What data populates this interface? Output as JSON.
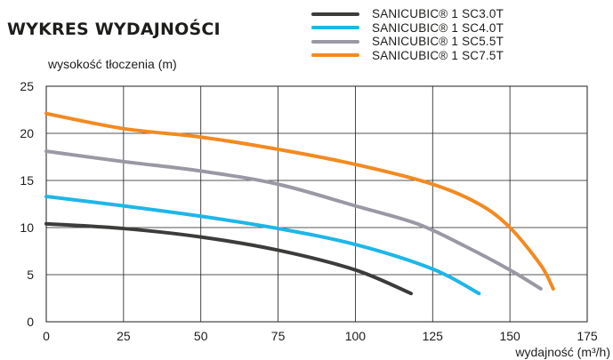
{
  "chart_data": {
    "type": "line",
    "title": "WYKRES WYDAJNOŚCI",
    "ylabel": "wysokość tłoczenia (m)",
    "xlabel": "wydajność (m³/h)",
    "xlim": [
      0,
      175
    ],
    "ylim": [
      0,
      25
    ],
    "xticks": [
      "0",
      "25",
      "50",
      "75",
      "100",
      "125",
      "150",
      "175"
    ],
    "yticks": [
      "0",
      "5",
      "10",
      "15",
      "20",
      "25"
    ],
    "xtick_values": [
      0,
      25,
      50,
      75,
      100,
      125,
      150,
      175
    ],
    "ytick_values": [
      0,
      5,
      10,
      15,
      20,
      25
    ],
    "grid": true,
    "legend_position": "top-right",
    "series": [
      {
        "name": "SANICUBIC® 1 SC3.0T",
        "color": "#3c3c3b",
        "points": [
          [
            0,
            10.4
          ],
          [
            25,
            9.9
          ],
          [
            50,
            9.0
          ],
          [
            75,
            7.6
          ],
          [
            100,
            5.5
          ],
          [
            118,
            3.0
          ]
        ]
      },
      {
        "name": "SANICUBIC® 1 SC4.0T",
        "color": "#1eb6e8",
        "points": [
          [
            0,
            13.3
          ],
          [
            25,
            12.3
          ],
          [
            50,
            11.2
          ],
          [
            75,
            9.9
          ],
          [
            100,
            8.2
          ],
          [
            125,
            5.6
          ],
          [
            140,
            3.0
          ]
        ]
      },
      {
        "name": "SANICUBIC® 1 SC5.5T",
        "color": "#9b98a4",
        "points": [
          [
            0,
            18.1
          ],
          [
            25,
            17.0
          ],
          [
            50,
            16.0
          ],
          [
            75,
            14.6
          ],
          [
            100,
            12.3
          ],
          [
            120,
            10.4
          ],
          [
            135,
            8.1
          ],
          [
            150,
            5.5
          ],
          [
            160,
            3.5
          ]
        ]
      },
      {
        "name": "SANICUBIC® 1 SC7.5T",
        "color": "#f28a22",
        "points": [
          [
            0,
            22.1
          ],
          [
            25,
            20.5
          ],
          [
            50,
            19.6
          ],
          [
            75,
            18.3
          ],
          [
            100,
            16.7
          ],
          [
            125,
            14.6
          ],
          [
            140,
            12.5
          ],
          [
            150,
            10.0
          ],
          [
            160,
            6.0
          ],
          [
            164,
            3.5
          ]
        ]
      }
    ]
  }
}
